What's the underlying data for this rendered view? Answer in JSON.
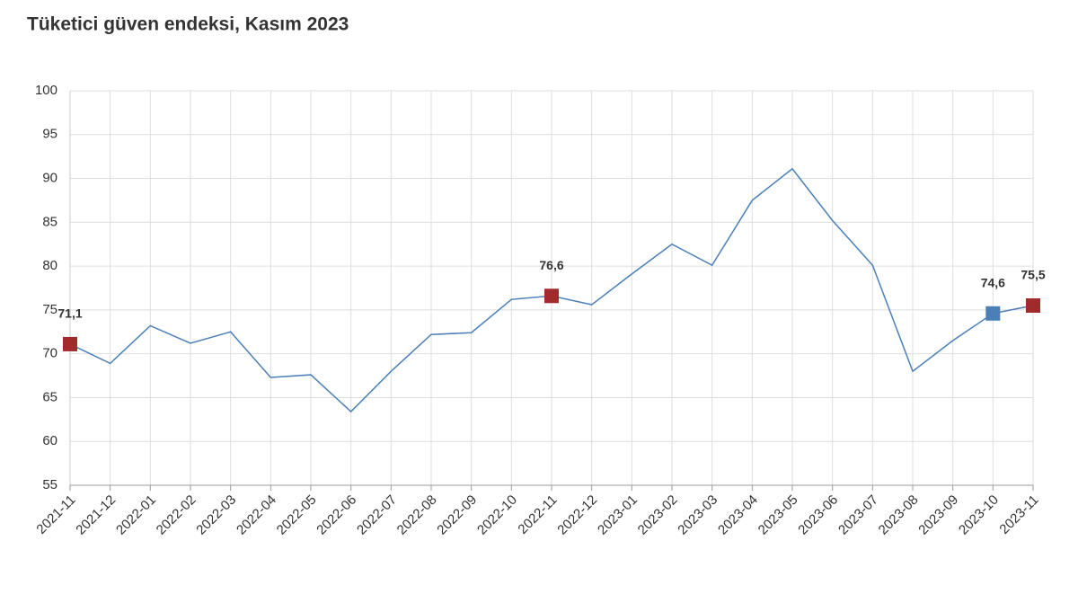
{
  "chart_data": {
    "type": "line",
    "title": "Tüketici güven endeksi, Kasım 2023",
    "categories": [
      "2021-11",
      "2021-12",
      "2022-01",
      "2022-02",
      "2022-03",
      "2022-04",
      "2022-05",
      "2022-06",
      "2022-07",
      "2022-08",
      "2022-09",
      "2022-10",
      "2022-11",
      "2022-12",
      "2023-01",
      "2023-02",
      "2023-03",
      "2023-04",
      "2023-05",
      "2023-06",
      "2023-07",
      "2023-08",
      "2023-09",
      "2023-10",
      "2023-11"
    ],
    "series": [
      {
        "color": "#4a7fb8",
        "values": [
          71.1,
          68.9,
          73.2,
          71.2,
          72.5,
          67.3,
          67.6,
          63.4,
          68.0,
          72.2,
          72.4,
          76.2,
          76.6,
          75.6,
          79.1,
          82.5,
          80.1,
          87.5,
          91.1,
          85.2,
          80.1,
          68.0,
          71.5,
          74.6,
          75.5
        ],
        "value_labels": [
          "71,1",
          null,
          null,
          null,
          null,
          null,
          null,
          null,
          null,
          null,
          null,
          null,
          "76,6",
          null,
          null,
          null,
          null,
          null,
          null,
          null,
          null,
          null,
          null,
          "74,6",
          "75,5"
        ],
        "marker_colors": [
          "#a22a2a",
          null,
          null,
          null,
          null,
          null,
          null,
          null,
          null,
          null,
          null,
          null,
          "#a22a2a",
          null,
          null,
          null,
          null,
          null,
          null,
          null,
          null,
          null,
          null,
          "#4a7fb8",
          "#a22a2a"
        ]
      }
    ],
    "ylim": [
      55,
      100
    ],
    "yticks": [
      55,
      60,
      65,
      70,
      75,
      80,
      85,
      90,
      95,
      100
    ],
    "grid": true
  }
}
